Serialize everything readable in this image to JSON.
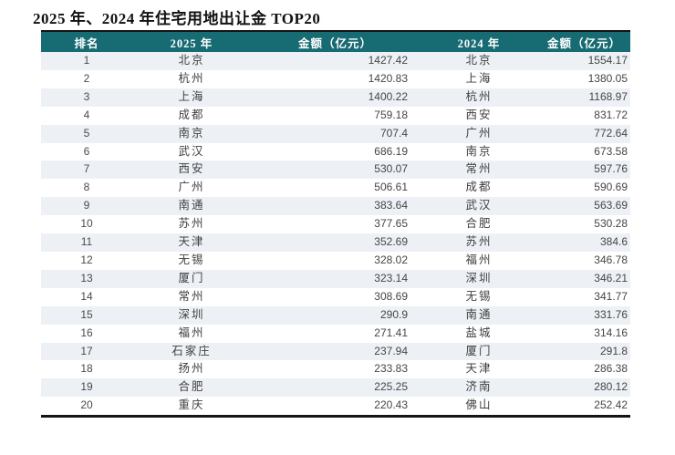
{
  "title": "2025 年、2024 年住宅用地出让金 TOP20",
  "colors": {
    "header_bg": "#176b72",
    "header_text": "#ffffff",
    "stripe_row": "#edf1f6",
    "border": "#141414"
  },
  "table": {
    "headers": [
      "排名",
      "2025 年",
      "金额（亿元）",
      "2024 年",
      "金额（亿元）"
    ],
    "rows": [
      [
        "1",
        "北京",
        "1427.42",
        "北京",
        "1554.17"
      ],
      [
        "2",
        "杭州",
        "1420.83",
        "上海",
        "1380.05"
      ],
      [
        "3",
        "上海",
        "1400.22",
        "杭州",
        "1168.97"
      ],
      [
        "4",
        "成都",
        "759.18",
        "西安",
        "831.72"
      ],
      [
        "5",
        "南京",
        "707.4",
        "广州",
        "772.64"
      ],
      [
        "6",
        "武汉",
        "686.19",
        "南京",
        "673.58"
      ],
      [
        "7",
        "西安",
        "530.07",
        "常州",
        "597.76"
      ],
      [
        "8",
        "广州",
        "506.61",
        "成都",
        "590.69"
      ],
      [
        "9",
        "南通",
        "383.64",
        "武汉",
        "563.69"
      ],
      [
        "10",
        "苏州",
        "377.65",
        "合肥",
        "530.28"
      ],
      [
        "11",
        "天津",
        "352.69",
        "苏州",
        "384.6"
      ],
      [
        "12",
        "无锡",
        "328.02",
        "福州",
        "346.78"
      ],
      [
        "13",
        "厦门",
        "323.14",
        "深圳",
        "346.21"
      ],
      [
        "14",
        "常州",
        "308.69",
        "无锡",
        "341.77"
      ],
      [
        "15",
        "深圳",
        "290.9",
        "南通",
        "331.76"
      ],
      [
        "16",
        "福州",
        "271.41",
        "盐城",
        "314.16"
      ],
      [
        "17",
        "石家庄",
        "237.94",
        "厦门",
        "291.8"
      ],
      [
        "18",
        "扬州",
        "233.83",
        "天津",
        "286.38"
      ],
      [
        "19",
        "合肥",
        "225.25",
        "济南",
        "280.12"
      ],
      [
        "20",
        "重庆",
        "220.43",
        "佛山",
        "252.42"
      ]
    ]
  }
}
